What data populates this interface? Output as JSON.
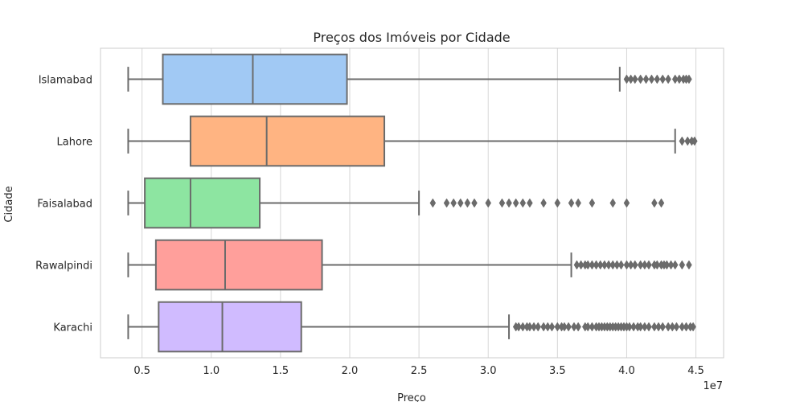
{
  "chart_data": {
    "type": "box",
    "orientation": "horizontal",
    "title": "Preços dos Imóveis por Cidade",
    "xlabel": "Preço",
    "ylabel": "Cidade",
    "x_offset_label": "1e7",
    "xlim": [
      0.2,
      4.7
    ],
    "x_ticks": [
      0.5,
      1.0,
      1.5,
      2.0,
      2.5,
      3.0,
      3.5,
      4.0,
      4.5
    ],
    "x_tick_labels": [
      "0.5",
      "1.0",
      "1.5",
      "2.0",
      "2.5",
      "3.0",
      "3.5",
      "4.0",
      "4.5"
    ],
    "grid": "vertical",
    "categories": [
      "Islamabad",
      "Lahore",
      "Faisalabad",
      "Rawalpindi",
      "Karachi"
    ],
    "boxes": [
      {
        "category": "Islamabad",
        "color": "#a1c9f4",
        "whisker_low": 0.4,
        "q1": 0.65,
        "median": 1.3,
        "q3": 1.98,
        "whisker_high": 3.95,
        "outliers": [
          4.0,
          4.03,
          4.06,
          4.1,
          4.14,
          4.18,
          4.22,
          4.26,
          4.3,
          4.35,
          4.38,
          4.41,
          4.43,
          4.45
        ]
      },
      {
        "category": "Lahore",
        "color": "#ffb482",
        "whisker_low": 0.4,
        "q1": 0.85,
        "median": 1.4,
        "q3": 2.25,
        "whisker_high": 4.35,
        "outliers": [
          4.4,
          4.44,
          4.47,
          4.49
        ]
      },
      {
        "category": "Faisalabad",
        "color": "#8de5a1",
        "whisker_low": 0.4,
        "q1": 0.52,
        "median": 0.85,
        "q3": 1.35,
        "whisker_high": 2.5,
        "outliers": [
          2.6,
          2.7,
          2.75,
          2.8,
          2.85,
          2.9,
          3.0,
          3.1,
          3.15,
          3.2,
          3.25,
          3.3,
          3.4,
          3.5,
          3.6,
          3.65,
          3.75,
          3.9,
          4.0,
          4.2,
          4.25
        ]
      },
      {
        "category": "Rawalpindi",
        "color": "#ff9f9b",
        "whisker_low": 0.4,
        "q1": 0.6,
        "median": 1.1,
        "q3": 1.8,
        "whisker_high": 3.6,
        "outliers": [
          3.64,
          3.67,
          3.7,
          3.72,
          3.75,
          3.78,
          3.81,
          3.84,
          3.87,
          3.9,
          3.93,
          3.96,
          4.0,
          4.03,
          4.06,
          4.1,
          4.13,
          4.16,
          4.2,
          4.22,
          4.25,
          4.27,
          4.29,
          4.32,
          4.35,
          4.4,
          4.45
        ]
      },
      {
        "category": "Karachi",
        "color": "#d0bbff",
        "whisker_low": 0.4,
        "q1": 0.62,
        "median": 1.08,
        "q3": 1.65,
        "whisker_high": 3.15,
        "outliers": [
          3.2,
          3.22,
          3.25,
          3.28,
          3.3,
          3.33,
          3.36,
          3.4,
          3.43,
          3.46,
          3.5,
          3.53,
          3.55,
          3.58,
          3.62,
          3.65,
          3.7,
          3.72,
          3.75,
          3.78,
          3.8,
          3.82,
          3.84,
          3.86,
          3.88,
          3.9,
          3.92,
          3.94,
          3.96,
          3.98,
          4.0,
          4.02,
          4.05,
          4.08,
          4.1,
          4.13,
          4.16,
          4.2,
          4.23,
          4.26,
          4.3,
          4.33,
          4.36,
          4.4,
          4.43,
          4.46,
          4.48
        ]
      }
    ],
    "style": {
      "edge_color": "#6b6b6b",
      "grid_color": "#d6d6d6",
      "spine_color": "#cccccc"
    }
  }
}
